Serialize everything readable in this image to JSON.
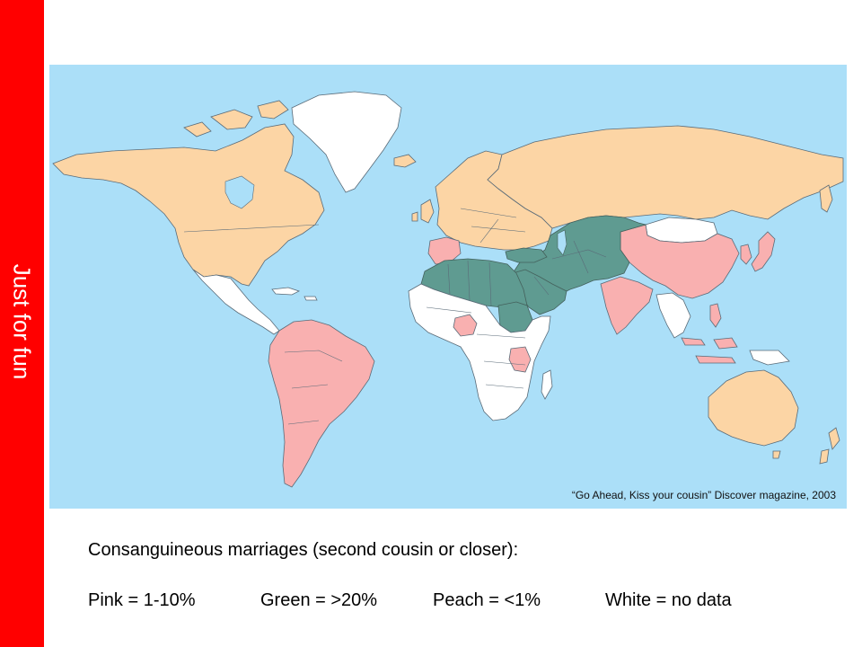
{
  "sidebar": {
    "label": "Just for fun",
    "color": "#ff0000"
  },
  "map": {
    "ocean_color": "#abdff8",
    "colors": {
      "pink": "#f9b0b0",
      "green": "#5f9b91",
      "peach": "#fcd5a5",
      "white": "#ffffff"
    },
    "citation": "“Go Ahead, Kiss your cousin” Discover magazine, 2003"
  },
  "caption": "Consanguineous marriages (second cousin or closer):",
  "legend": [
    "Pink = 1-10%",
    "Green = >20%",
    "Peach = <1%",
    "White = no data"
  ]
}
